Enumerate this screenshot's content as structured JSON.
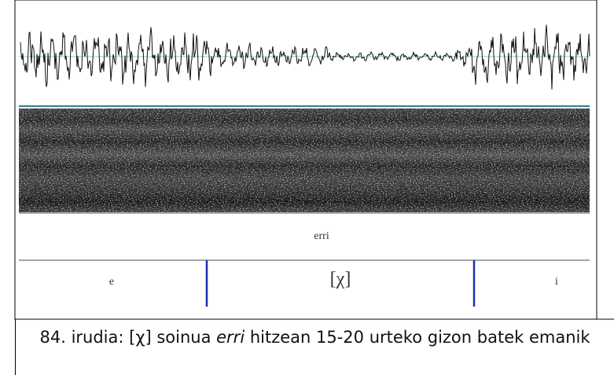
{
  "figure": {
    "word_tier": "erri",
    "segments": [
      "e",
      "[χ]",
      "i"
    ]
  },
  "caption": {
    "before": "84. irudia: [χ] soinua ",
    "emphasis": "erri",
    "after": " hitzean 15-20 urteko gizon batek emanik"
  }
}
